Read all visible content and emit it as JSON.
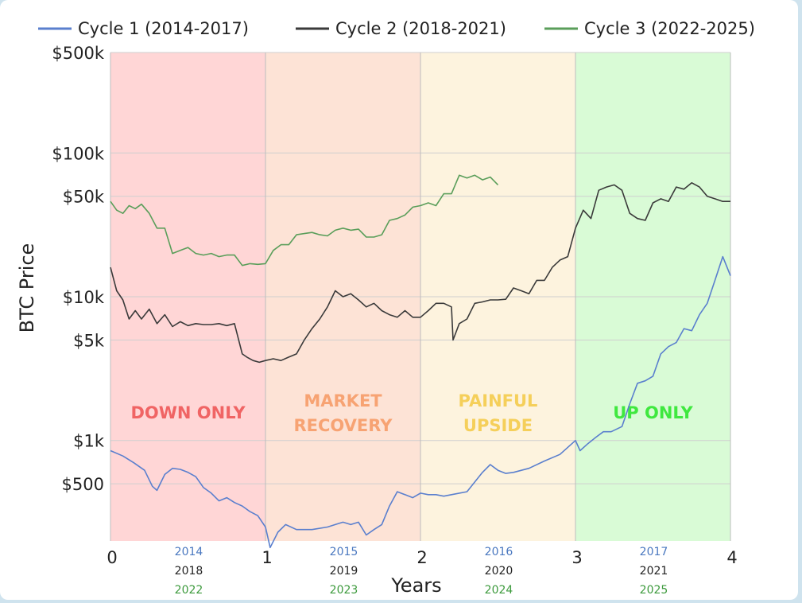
{
  "chart_data": {
    "type": "line",
    "xlabel": "Years",
    "ylabel": "BTC Price",
    "xlim": [
      0,
      4
    ],
    "ylim": [
      200,
      500000
    ],
    "yscale": "log",
    "x_ticks": [
      0,
      1,
      2,
      3,
      4
    ],
    "y_ticks": [
      {
        "label": "$500k",
        "value": 500000
      },
      {
        "label": "$100k",
        "value": 100000
      },
      {
        "label": "$50k",
        "value": 50000
      },
      {
        "label": "$10k",
        "value": 10000
      },
      {
        "label": "$5k",
        "value": 5000
      },
      {
        "label": "$1k",
        "value": 1000
      },
      {
        "label": "$500",
        "value": 500
      }
    ],
    "grid": true,
    "legend_position": "top",
    "year_labels": [
      {
        "x": 0.5,
        "years": [
          "2014",
          "2018",
          "2022"
        ]
      },
      {
        "x": 1.5,
        "years": [
          "2015",
          "2019",
          "2023"
        ]
      },
      {
        "x": 2.5,
        "years": [
          "2016",
          "2020",
          "2024"
        ]
      },
      {
        "x": 3.5,
        "years": [
          "2017",
          "2021",
          "2025"
        ]
      }
    ],
    "zones": [
      {
        "start": 0,
        "end": 1,
        "label_lines": [
          "DOWN ONLY"
        ],
        "fill": "#ffd6d6",
        "label_color": "#f06464"
      },
      {
        "start": 1,
        "end": 2,
        "label_lines": [
          "MARKET",
          "RECOVERY"
        ],
        "fill": "#fde3d6",
        "label_color": "#f7a373"
      },
      {
        "start": 2,
        "end": 3,
        "label_lines": [
          "PAINFUL",
          "UPSIDE"
        ],
        "fill": "#fdf3de",
        "label_color": "#f5cf5a"
      },
      {
        "start": 3,
        "end": 4,
        "label_lines": [
          "UP ONLY"
        ],
        "fill": "#d9fbd6",
        "label_color": "#3fe83f"
      }
    ],
    "series": [
      {
        "name": "Cycle 1 (2014-2017)",
        "color": "#5a7fce",
        "year_color": "#4a78c0",
        "x": [
          0,
          0.08,
          0.15,
          0.22,
          0.27,
          0.3,
          0.35,
          0.4,
          0.45,
          0.5,
          0.55,
          0.6,
          0.65,
          0.7,
          0.75,
          0.8,
          0.85,
          0.9,
          0.95,
          1.0,
          1.03,
          1.08,
          1.13,
          1.2,
          1.3,
          1.4,
          1.45,
          1.5,
          1.55,
          1.6,
          1.65,
          1.7,
          1.75,
          1.8,
          1.85,
          1.9,
          1.95,
          2.0,
          2.05,
          2.1,
          2.15,
          2.2,
          2.3,
          2.4,
          2.45,
          2.5,
          2.55,
          2.6,
          2.7,
          2.8,
          2.9,
          3.0,
          3.03,
          3.08,
          3.13,
          3.18,
          3.23,
          3.3,
          3.35,
          3.4,
          3.45,
          3.5,
          3.55,
          3.6,
          3.65,
          3.7,
          3.75,
          3.8,
          3.85,
          3.9,
          3.95,
          4.0
        ],
        "values": [
          850,
          780,
          700,
          620,
          480,
          450,
          580,
          640,
          630,
          600,
          560,
          470,
          430,
          380,
          400,
          370,
          350,
          320,
          300,
          250,
          180,
          230,
          260,
          240,
          240,
          250,
          260,
          270,
          260,
          270,
          220,
          240,
          260,
          350,
          440,
          420,
          400,
          430,
          420,
          420,
          410,
          420,
          440,
          600,
          680,
          620,
          590,
          600,
          640,
          720,
          800,
          1000,
          850,
          950,
          1050,
          1150,
          1150,
          1250,
          1800,
          2500,
          2600,
          2800,
          4000,
          4500,
          4800,
          6000,
          5800,
          7500,
          9000,
          13000,
          19000,
          14000
        ]
      },
      {
        "name": "Cycle 2 (2018-2021)",
        "color": "#3a3a3a",
        "year_color": "#222222",
        "x": [
          0,
          0.04,
          0.08,
          0.12,
          0.16,
          0.2,
          0.25,
          0.3,
          0.35,
          0.4,
          0.45,
          0.5,
          0.55,
          0.6,
          0.65,
          0.7,
          0.75,
          0.8,
          0.85,
          0.88,
          0.92,
          0.96,
          1.0,
          1.05,
          1.1,
          1.15,
          1.2,
          1.25,
          1.3,
          1.35,
          1.4,
          1.45,
          1.5,
          1.55,
          1.6,
          1.65,
          1.7,
          1.75,
          1.8,
          1.85,
          1.9,
          1.95,
          2.0,
          2.05,
          2.1,
          2.15,
          2.2,
          2.21,
          2.25,
          2.3,
          2.35,
          2.4,
          2.45,
          2.5,
          2.55,
          2.6,
          2.65,
          2.7,
          2.75,
          2.8,
          2.85,
          2.9,
          2.95,
          3.0,
          3.05,
          3.1,
          3.15,
          3.2,
          3.25,
          3.3,
          3.35,
          3.4,
          3.45,
          3.5,
          3.55,
          3.6,
          3.65,
          3.7,
          3.75,
          3.8,
          3.85,
          3.9,
          3.95,
          4.0
        ],
        "values": [
          16000,
          11000,
          9500,
          7000,
          8000,
          7000,
          8200,
          6500,
          7500,
          6200,
          6700,
          6300,
          6500,
          6400,
          6400,
          6500,
          6300,
          6500,
          4000,
          3800,
          3600,
          3500,
          3600,
          3700,
          3600,
          3800,
          4000,
          5000,
          6000,
          7000,
          8500,
          11000,
          10000,
          10500,
          9500,
          8500,
          9000,
          8000,
          7500,
          7200,
          8000,
          7200,
          7200,
          8000,
          9000,
          9000,
          8500,
          5000,
          6500,
          7000,
          9000,
          9200,
          9500,
          9500,
          9600,
          11500,
          11000,
          10500,
          13000,
          13000,
          16000,
          18000,
          19000,
          30000,
          40000,
          35000,
          55000,
          58000,
          60000,
          55000,
          38000,
          35000,
          34000,
          45000,
          48000,
          46000,
          58000,
          56000,
          62000,
          58000,
          50000,
          48000,
          46000,
          46000
        ]
      },
      {
        "name": "Cycle 3 (2022-2025)",
        "color": "#5a9e5a",
        "year_color": "#3c9a3c",
        "x": [
          0,
          0.04,
          0.08,
          0.12,
          0.16,
          0.2,
          0.25,
          0.3,
          0.35,
          0.4,
          0.45,
          0.5,
          0.55,
          0.6,
          0.65,
          0.7,
          0.75,
          0.8,
          0.85,
          0.9,
          0.95,
          1.0,
          1.05,
          1.1,
          1.15,
          1.2,
          1.25,
          1.3,
          1.35,
          1.4,
          1.45,
          1.5,
          1.55,
          1.6,
          1.65,
          1.7,
          1.75,
          1.8,
          1.85,
          1.9,
          1.95,
          2.0,
          2.05,
          2.1,
          2.15,
          2.2,
          2.25,
          2.3,
          2.35,
          2.4,
          2.45,
          2.5
        ],
        "values": [
          46000,
          40000,
          38000,
          43000,
          41000,
          44000,
          38000,
          30000,
          30000,
          20000,
          21000,
          22000,
          20000,
          19500,
          20000,
          19000,
          19500,
          19500,
          16500,
          17000,
          16800,
          17000,
          21000,
          23000,
          23000,
          27000,
          27500,
          28000,
          27000,
          26500,
          29000,
          30000,
          29000,
          29500,
          26000,
          26000,
          27000,
          34000,
          35000,
          37000,
          42000,
          43000,
          45000,
          43000,
          52000,
          52000,
          70000,
          67000,
          70000,
          65000,
          68000,
          60000
        ]
      }
    ]
  }
}
